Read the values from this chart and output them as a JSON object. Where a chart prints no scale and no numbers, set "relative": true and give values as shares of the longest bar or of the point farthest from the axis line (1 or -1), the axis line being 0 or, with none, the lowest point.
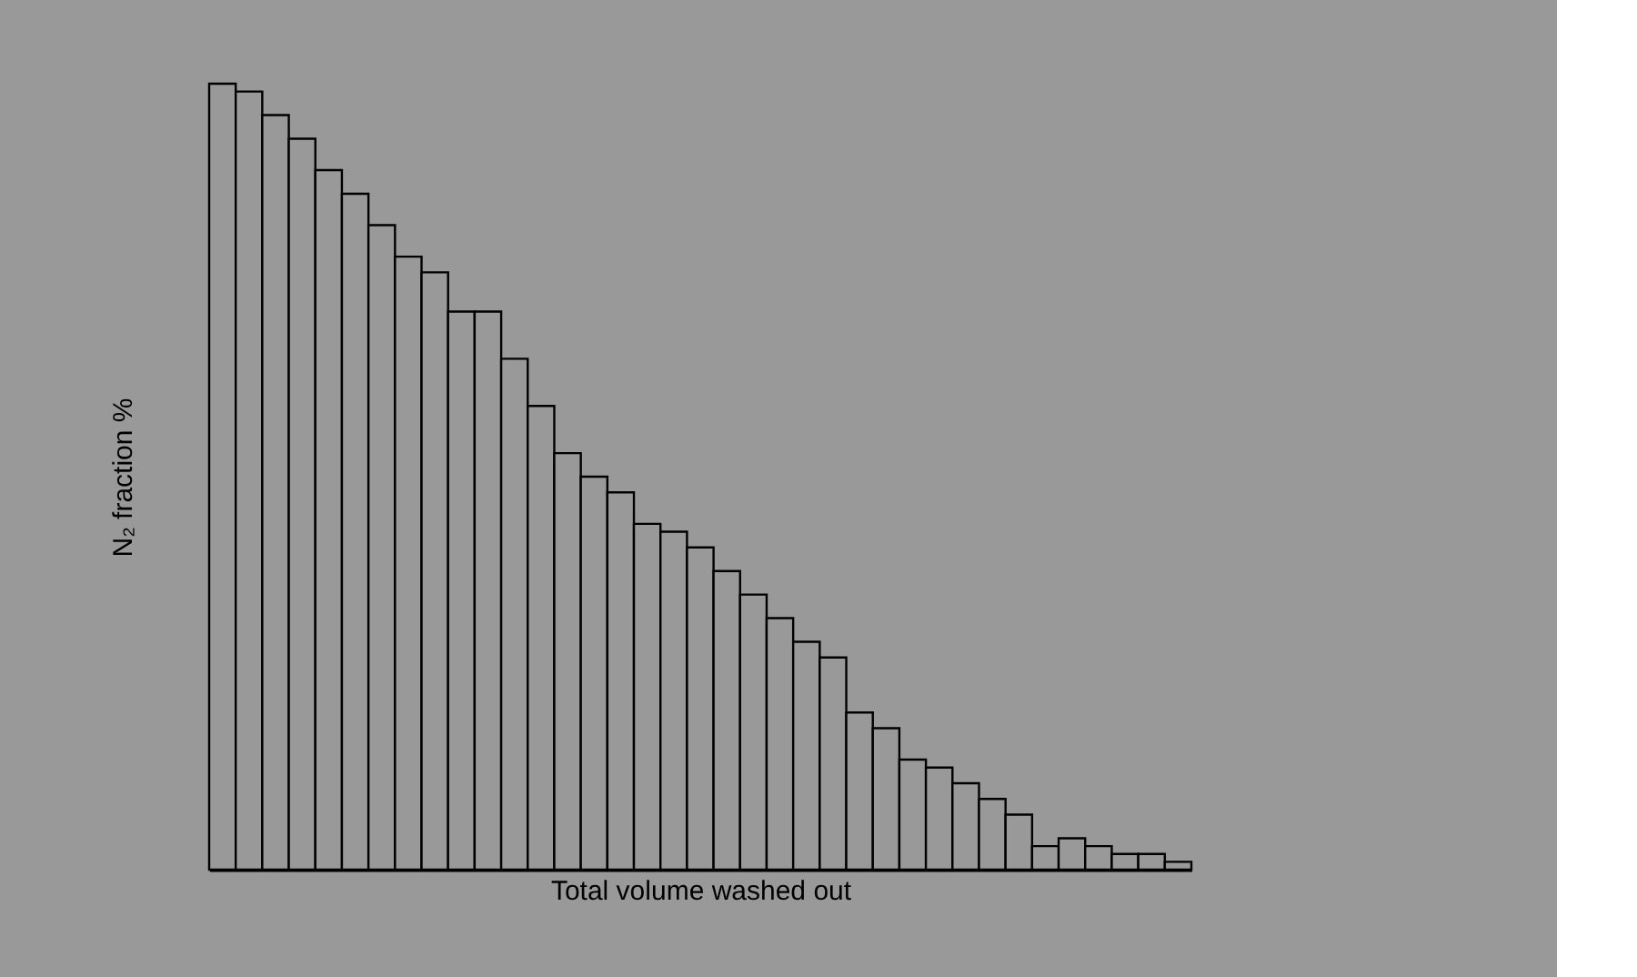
{
  "chart_data": {
    "type": "bar",
    "relative": true,
    "xlabel": "Total volume washed out",
    "ylabel": "N₂ fraction  %",
    "color": "#999999",
    "tick_labels": false,
    "grid": false,
    "categories": [
      null,
      null,
      null,
      null,
      null,
      null,
      null,
      null,
      null,
      null,
      null,
      null,
      null,
      null,
      null,
      null,
      null,
      null,
      null,
      null,
      null,
      null,
      null,
      null,
      null,
      null,
      null,
      null,
      null,
      null,
      null,
      null,
      null,
      null,
      null,
      null,
      null
    ],
    "values": [
      1,
      0.99,
      0.96,
      0.93,
      0.89,
      0.86,
      0.82,
      0.78,
      0.76,
      0.71,
      0.71,
      0.65,
      0.59,
      0.53,
      0.5,
      0.48,
      0.44,
      0.43,
      0.41,
      0.38,
      0.35,
      0.32,
      0.29,
      0.27,
      0.2,
      0.18,
      0.14,
      0.13,
      0.11,
      0.09,
      0.07,
      0.03,
      0.04,
      0.03,
      0.02,
      0.02,
      0.01
    ]
  }
}
